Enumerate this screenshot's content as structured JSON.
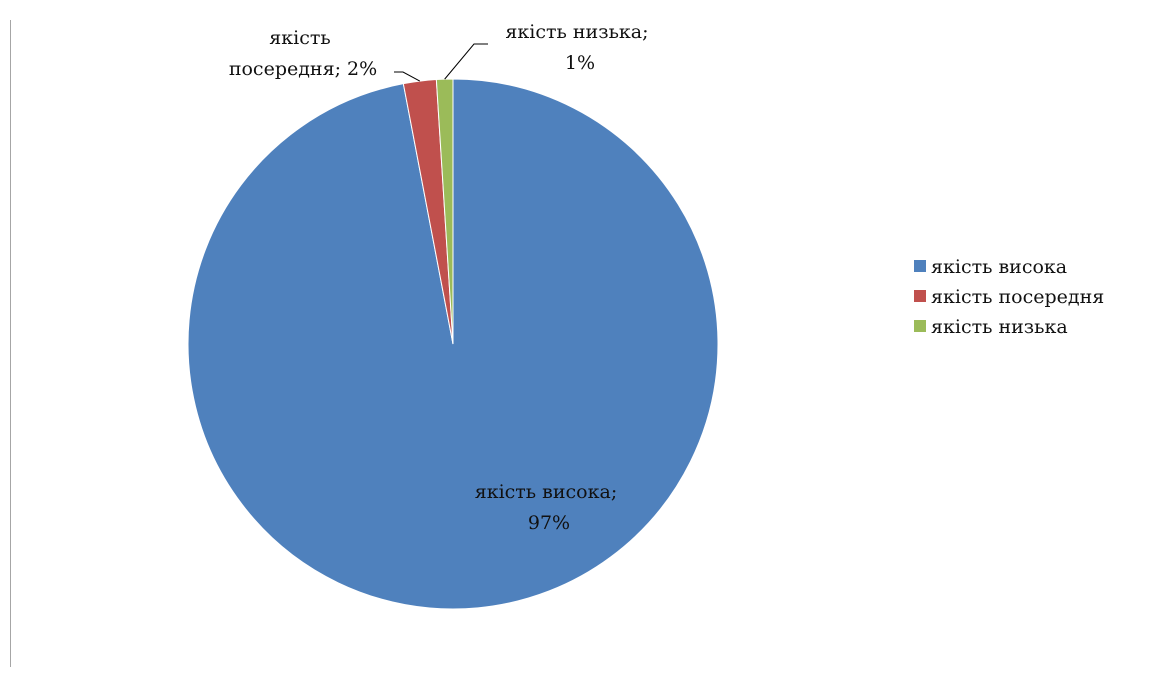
{
  "chart_data": {
    "type": "pie",
    "slices": [
      {
        "name": "якість висока",
        "value": 97,
        "label_line1": "якість висока;",
        "label_line2": "97%",
        "color": "#4F81BD"
      },
      {
        "name": "якість посередня",
        "value": 2,
        "label_line1": "якість",
        "label_line2": "посередня; 2%",
        "color": "#C0504D"
      },
      {
        "name": "якість низька",
        "value": 1,
        "label_line1": "якість низька;",
        "label_line2": "1%",
        "color": "#9BBB59"
      }
    ],
    "legend": {
      "position": "right",
      "entries": [
        "якість висока",
        "якість посередня",
        "якість низька"
      ]
    }
  }
}
